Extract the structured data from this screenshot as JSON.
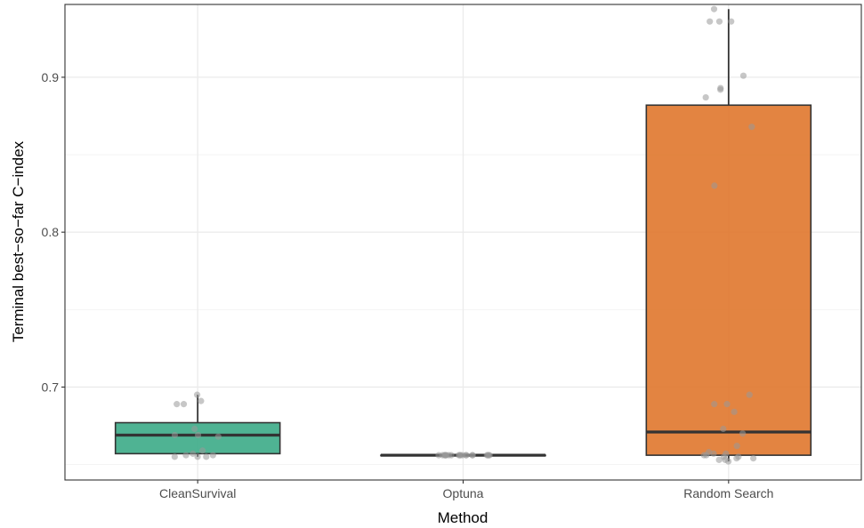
{
  "chart_data": {
    "type": "box",
    "xlabel": "Method",
    "ylabel": "Terminal best−so−far C−index",
    "categories": [
      "CleanSurvival",
      "Optuna",
      "Random Search"
    ],
    "ylim": [
      0.64,
      0.947
    ],
    "yticks": [
      0.7,
      0.8,
      0.9
    ],
    "ytick_labels": [
      "0.7",
      "0.8",
      "0.9"
    ],
    "grid": true,
    "legend": "none",
    "boxes": [
      {
        "name": "CleanSurvival",
        "color": "#3cab87",
        "q1": 0.657,
        "median": 0.669,
        "q3": 0.677,
        "whisker_low": 0.655,
        "whisker_high": 0.695
      },
      {
        "name": "Optuna",
        "color": "#3cab87",
        "q1": 0.656,
        "median": 0.656,
        "q3": 0.656,
        "whisker_low": 0.656,
        "whisker_high": 0.656
      },
      {
        "name": "Random Search",
        "color": "#e0772c",
        "q1": 0.656,
        "median": 0.671,
        "q3": 0.882,
        "whisker_low": 0.652,
        "whisker_high": 0.944
      }
    ],
    "points": [
      {
        "category": "CleanSurvival",
        "values": [
          0.695,
          0.691,
          0.689,
          0.689,
          0.673,
          0.669,
          0.669,
          0.668,
          0.659,
          0.657,
          0.656,
          0.656,
          0.655,
          0.655,
          0.655
        ]
      },
      {
        "category": "Optuna",
        "values": [
          0.656,
          0.656,
          0.656,
          0.656,
          0.656,
          0.656,
          0.656,
          0.656,
          0.656,
          0.656,
          0.656,
          0.656,
          0.656,
          0.656,
          0.656,
          0.656,
          0.656,
          0.656,
          0.656,
          0.656
        ]
      },
      {
        "category": "Random Search",
        "values": [
          0.944,
          0.936,
          0.936,
          0.936,
          0.901,
          0.893,
          0.892,
          0.887,
          0.868,
          0.83,
          0.695,
          0.689,
          0.689,
          0.684,
          0.673,
          0.67,
          0.662,
          0.658,
          0.657,
          0.657,
          0.656,
          0.656,
          0.655,
          0.655,
          0.654,
          0.654,
          0.653,
          0.653,
          0.652
        ]
      }
    ],
    "point_color": "#999999"
  }
}
